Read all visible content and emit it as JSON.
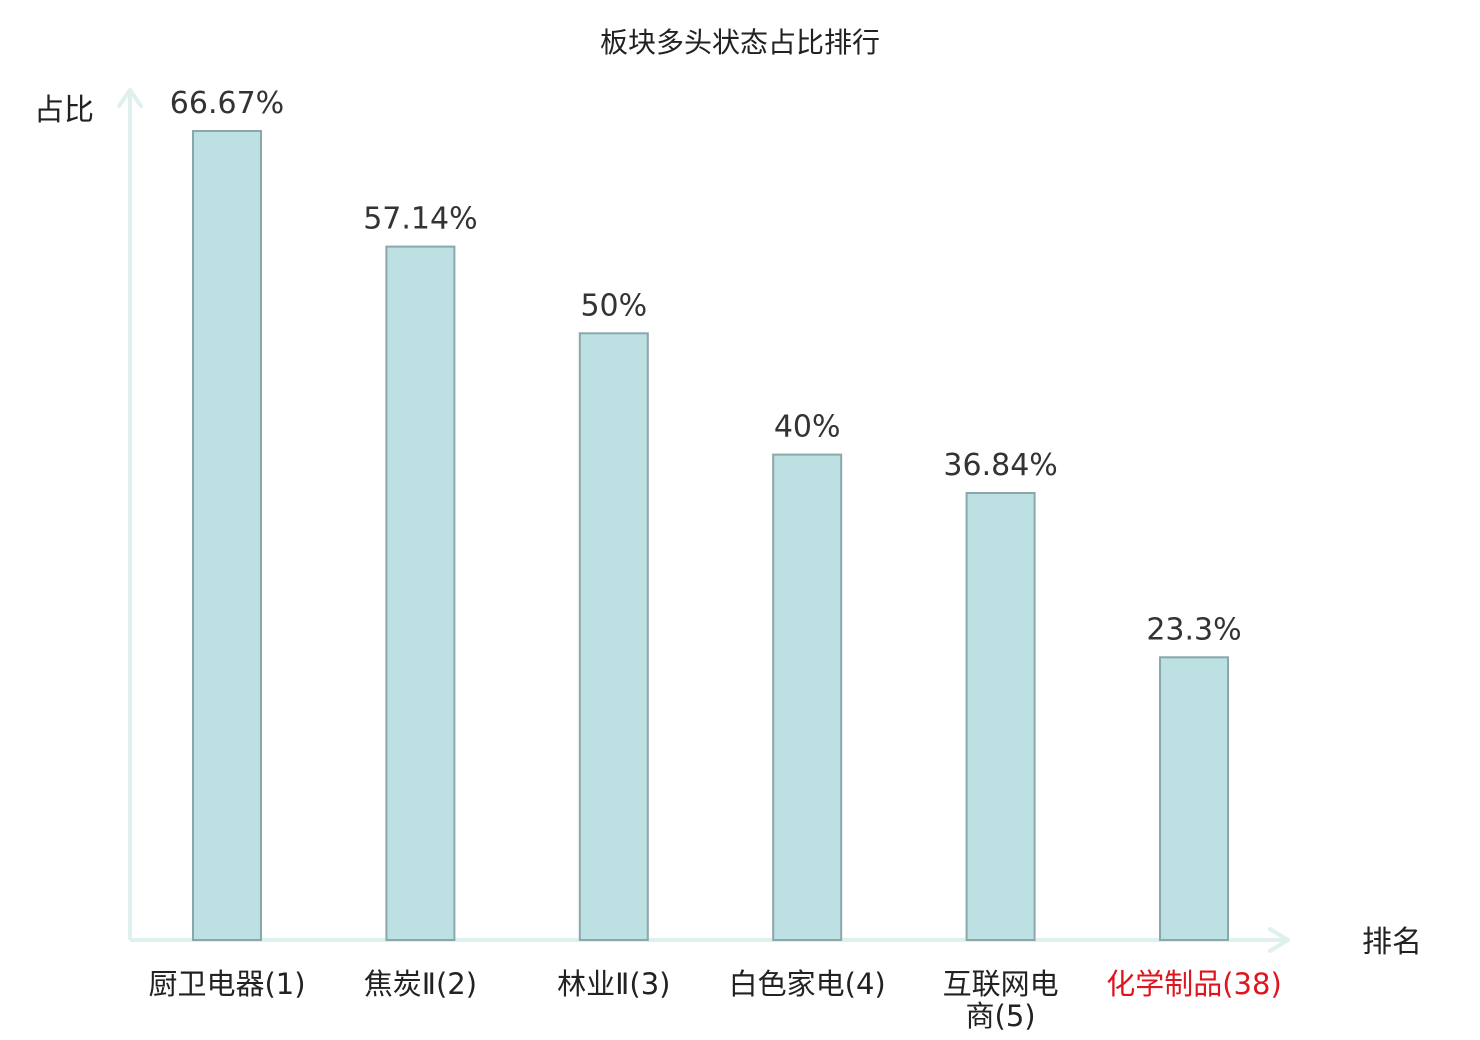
{
  "chart_data": {
    "type": "bar",
    "title": "板块多头状态占比排行",
    "ylabel": "占比",
    "xlabel": "排名",
    "ylim": [
      0,
      70
    ],
    "grid": false,
    "categories": [
      "厨卫电器(1)",
      "焦炭Ⅱ(2)",
      "林业Ⅱ(3)",
      "白色家电(4)",
      "互联网电商(5)",
      "化学制品(38)"
    ],
    "values": [
      66.67,
      57.14,
      50,
      40,
      36.84,
      23.3
    ],
    "value_labels": [
      "66.67%",
      "57.14%",
      "50%",
      "40%",
      "36.84%",
      "23.3%"
    ],
    "highlight_index": 5,
    "colors": {
      "bar_fill": "#bde0e3",
      "bar_stroke": "#8aa7aa",
      "axis": "#dff1ef",
      "highlight_text": "#e0141e",
      "text": "#222222"
    }
  }
}
